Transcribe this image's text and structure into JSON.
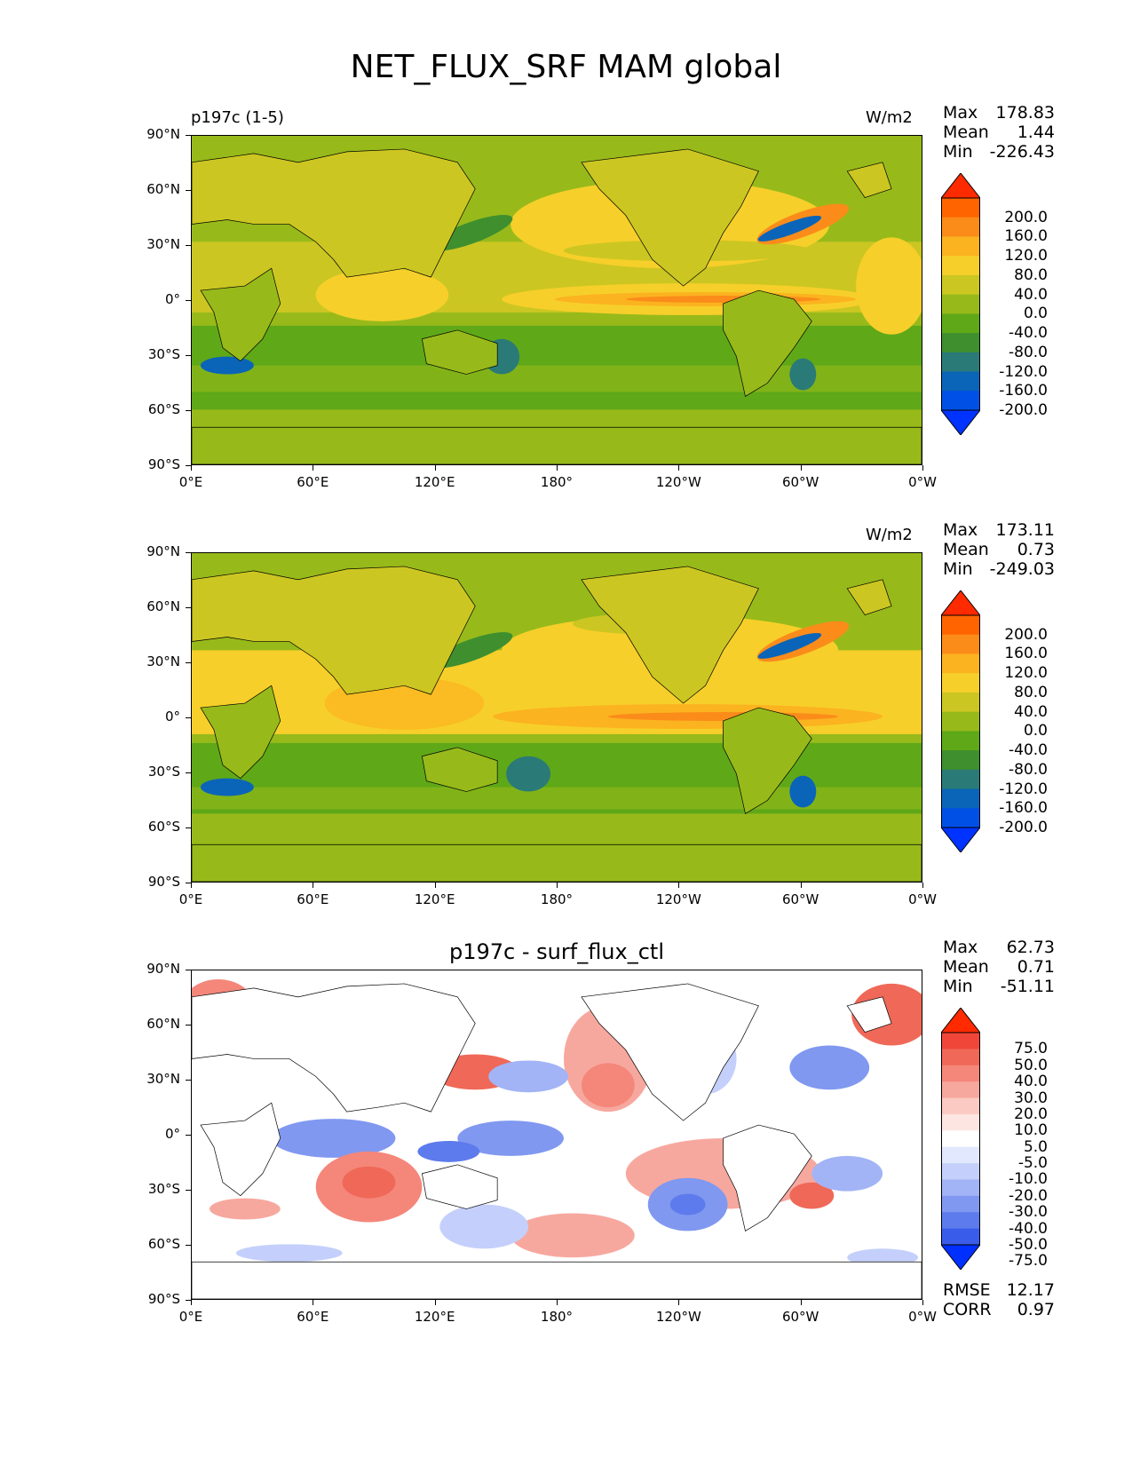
{
  "title": "NET_FLUX_SRF MAM global",
  "lat_ticks": [
    "90°N",
    "60°N",
    "30°N",
    "0°",
    "30°S",
    "60°S",
    "90°S"
  ],
  "lon_ticks": [
    "0°E",
    "60°E",
    "120°E",
    "180°",
    "120°W",
    "60°W",
    "0°W"
  ],
  "panels": [
    {
      "id": "test",
      "left_title": "p197c (1-5)",
      "center_title": "",
      "units": "W/m2",
      "stats": {
        "max_label": "Max",
        "max": "178.83",
        "mean_label": "Mean",
        "mean": "1.44",
        "min_label": "Min",
        "min": "-226.43"
      },
      "levels": [
        "200.0",
        "160.0",
        "120.0",
        "80.0",
        "40.0",
        "0.0",
        "-40.0",
        "-80.0",
        "-120.0",
        "-160.0",
        "-200.0"
      ],
      "colors": [
        "#fe2a00",
        "#ff6400",
        "#fb8c1a",
        "#fbb320",
        "#f7cf2a",
        "#ccc622",
        "#97ba1a",
        "#5fa818",
        "#3f8f2e",
        "#2a7a78",
        "#0a65b8",
        "#0050e6",
        "#0033ff"
      ]
    },
    {
      "id": "reference",
      "left_title": "",
      "center_title": "",
      "units": "W/m2",
      "stats": {
        "max_label": "Max",
        "max": "173.11",
        "mean_label": "Mean",
        "mean": "0.73",
        "min_label": "Min",
        "min": "-249.03"
      },
      "levels": [
        "200.0",
        "160.0",
        "120.0",
        "80.0",
        "40.0",
        "0.0",
        "-40.0",
        "-80.0",
        "-120.0",
        "-160.0",
        "-200.0"
      ],
      "colors": [
        "#fe2a00",
        "#ff6400",
        "#fb8c1a",
        "#fbb320",
        "#f7cf2a",
        "#ccc622",
        "#97ba1a",
        "#5fa818",
        "#3f8f2e",
        "#2a7a78",
        "#0a65b8",
        "#0050e6",
        "#0033ff"
      ]
    },
    {
      "id": "difference",
      "left_title": "",
      "center_title": "p197c - surf_flux_ctl",
      "units": "",
      "stats": {
        "max_label": "Max",
        "max": "62.73",
        "mean_label": "Mean",
        "mean": "0.71",
        "min_label": "Min",
        "min": "-51.11"
      },
      "levels": [
        "75.0",
        "50.0",
        "40.0",
        "30.0",
        "20.0",
        "10.0",
        "5.0",
        "-5.0",
        "-10.0",
        "-20.0",
        "-30.0",
        "-40.0",
        "-50.0",
        "-75.0"
      ],
      "colors": [
        "#ff2a00",
        "#f0463a",
        "#f06858",
        "#f4877a",
        "#f7a89e",
        "#fbcac2",
        "#fde6e2",
        "#ffffff",
        "#e2e8fd",
        "#c4d0fb",
        "#a2b4f6",
        "#8098f0",
        "#5d7bec",
        "#3a5cea",
        "#0030ff"
      ],
      "rmse_label": "RMSE",
      "rmse": "12.17",
      "corr_label": "CORR",
      "corr": "0.97"
    }
  ]
}
